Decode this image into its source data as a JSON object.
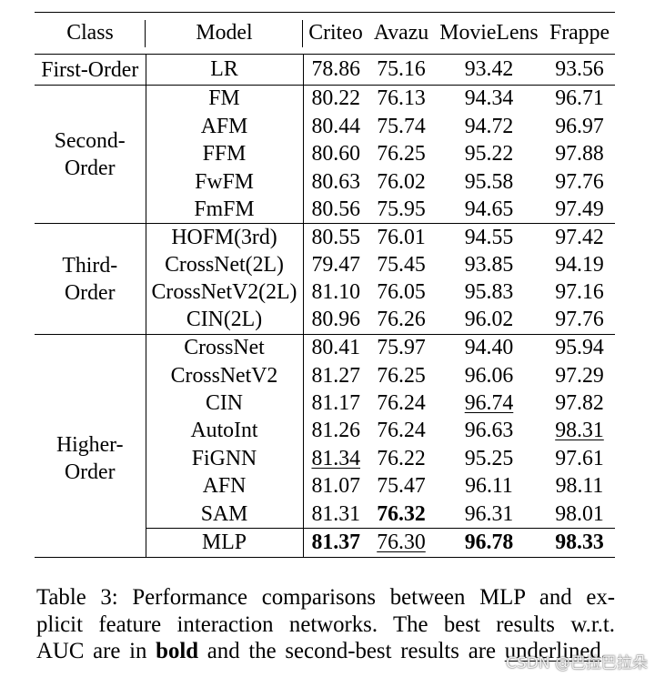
{
  "table": {
    "headers": {
      "class": "Class",
      "model": "Model",
      "datasets": [
        "Criteo",
        "Avazu",
        "MovieLens",
        "Frappe"
      ]
    },
    "groups": [
      {
        "class_lines": [
          "First-Order"
        ],
        "rows": [
          {
            "model": "LR",
            "values": [
              "78.86",
              "75.16",
              "93.42",
              "93.56"
            ]
          }
        ]
      },
      {
        "class_lines": [
          "Second-",
          "Order"
        ],
        "rows": [
          {
            "model": "FM",
            "values": [
              "80.22",
              "76.13",
              "94.34",
              "96.71"
            ]
          },
          {
            "model": "AFM",
            "values": [
              "80.44",
              "75.74",
              "94.72",
              "96.97"
            ]
          },
          {
            "model": "FFM",
            "values": [
              "80.60",
              "76.25",
              "95.22",
              "97.88"
            ]
          },
          {
            "model": "FwFM",
            "values": [
              "80.63",
              "76.02",
              "95.58",
              "97.76"
            ]
          },
          {
            "model": "FmFM",
            "values": [
              "80.56",
              "75.95",
              "94.65",
              "97.49"
            ]
          }
        ]
      },
      {
        "class_lines": [
          "Third-",
          "Order"
        ],
        "rows": [
          {
            "model": "HOFM(3rd)",
            "values": [
              "80.55",
              "76.01",
              "94.55",
              "97.42"
            ]
          },
          {
            "model": "CrossNet(2L)",
            "values": [
              "79.47",
              "75.45",
              "93.85",
              "94.19"
            ]
          },
          {
            "model": "CrossNetV2(2L)",
            "values": [
              "81.10",
              "76.05",
              "95.83",
              "97.16"
            ]
          },
          {
            "model": "CIN(2L)",
            "values": [
              "80.96",
              "76.26",
              "96.02",
              "97.76"
            ]
          }
        ]
      },
      {
        "class_lines": [
          "Higher-",
          "Order"
        ],
        "rows": [
          {
            "model": "CrossNet",
            "values": [
              "80.41",
              "75.97",
              "94.40",
              "95.94"
            ]
          },
          {
            "model": "CrossNetV2",
            "values": [
              "81.27",
              "76.25",
              "96.06",
              "97.29"
            ]
          },
          {
            "model": "CIN",
            "values": [
              "81.17",
              "76.24",
              "96.74",
              "97.82"
            ],
            "underlined": [
              2
            ]
          },
          {
            "model": "AutoInt",
            "values": [
              "81.26",
              "76.24",
              "96.63",
              "98.31"
            ],
            "underlined": [
              3
            ]
          },
          {
            "model": "FiGNN",
            "values": [
              "81.34",
              "76.22",
              "95.25",
              "97.61"
            ],
            "underlined": [
              0
            ]
          },
          {
            "model": "AFN",
            "values": [
              "81.07",
              "75.47",
              "96.11",
              "98.11"
            ]
          },
          {
            "model": "SAM",
            "values": [
              "81.31",
              "76.32",
              "96.31",
              "98.01"
            ],
            "bold": [
              1
            ]
          },
          {
            "model": "MLP",
            "values": [
              "81.37",
              "76.30",
              "96.78",
              "98.33"
            ],
            "bold": [
              0,
              2,
              3
            ],
            "underlined": [
              1
            ]
          }
        ]
      }
    ]
  },
  "caption": {
    "lines": [
      "Table 3: Performance comparisons between MLP and ex-",
      "plicit feature interaction networks. The best results w.r.t."
    ],
    "last_line": [
      "AUC are in ",
      "bold",
      " and the second-best results are ",
      "underlined",
      "."
    ]
  },
  "watermark": "CSDN @巴拉巴拉朵"
}
